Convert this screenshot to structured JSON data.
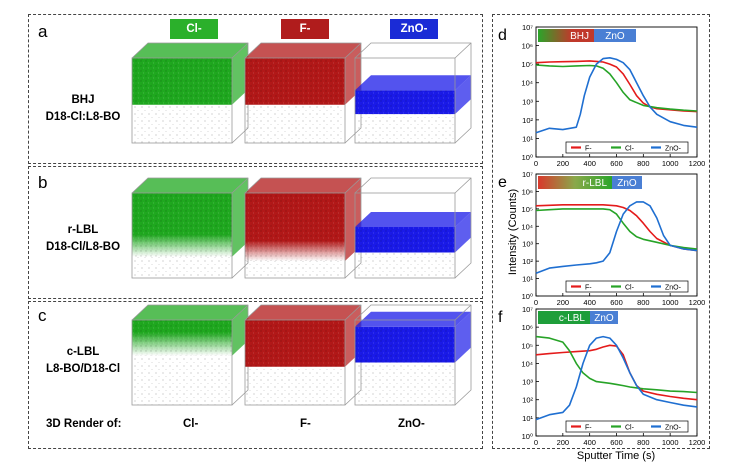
{
  "left": {
    "panel_labels": [
      "a",
      "b",
      "c"
    ],
    "column_headers": [
      {
        "label": "Cl-",
        "color": "#2bb02b"
      },
      {
        "label": "F-",
        "color": "#b01c1c"
      },
      {
        "label": "ZnO-",
        "color": "#1a2bd6"
      }
    ],
    "rows": [
      {
        "line1": "BHJ",
        "line2": "D18-Cl:L8-BO"
      },
      {
        "line1": "r-LBL",
        "line2": "D18-Cl/L8-BO"
      },
      {
        "line1": "c-LBL",
        "line2": "L8-BO/D18-Cl"
      }
    ],
    "footer": {
      "title": "3D Render of:",
      "labels": [
        "Cl-",
        "F-",
        "ZnO-"
      ]
    }
  },
  "right": {
    "shared_ylabel": "Intensity (Counts)",
    "shared_xlabel": "Sputter Time (s)"
  },
  "chart_data": [
    {
      "type": "line",
      "panel": "d",
      "banner": {
        "label1": "BHJ",
        "label2": "ZnO"
      },
      "xlim": [
        0,
        1200
      ],
      "xticks": [
        0,
        200,
        400,
        600,
        800,
        1000,
        1200
      ],
      "yscale": "log",
      "ylim": [
        1,
        10000000
      ],
      "ytick_labels": [
        "10^0",
        "10^1",
        "10^2",
        "10^3",
        "10^4",
        "10^5",
        "10^6",
        "10^7"
      ],
      "legend": [
        "F-",
        "Cl-",
        "ZnO-"
      ],
      "series": [
        {
          "name": "F-",
          "color": "#e41b1b",
          "x": [
            0,
            100,
            200,
            300,
            400,
            450,
            500,
            550,
            600,
            650,
            700,
            750,
            800,
            850,
            900,
            1000,
            1100,
            1200
          ],
          "y": [
            120000,
            130000,
            135000,
            140000,
            150000,
            140000,
            130000,
            100000,
            70000,
            30000,
            8000,
            2000,
            800,
            500,
            400,
            350,
            300,
            280
          ]
        },
        {
          "name": "Cl-",
          "color": "#27a327",
          "x": [
            0,
            100,
            200,
            300,
            400,
            450,
            500,
            550,
            600,
            650,
            700,
            800,
            900,
            1000,
            1100,
            1200
          ],
          "y": [
            90000,
            80000,
            75000,
            80000,
            85000,
            80000,
            60000,
            30000,
            10000,
            3000,
            1200,
            600,
            450,
            380,
            330,
            300
          ]
        },
        {
          "name": "ZnO-",
          "color": "#1f6fd1",
          "x": [
            0,
            100,
            200,
            300,
            330,
            360,
            400,
            450,
            500,
            550,
            600,
            650,
            700,
            750,
            800,
            850,
            900,
            1000,
            1100,
            1200
          ],
          "y": [
            20,
            35,
            30,
            40,
            200,
            2000,
            20000,
            100000,
            200000,
            220000,
            180000,
            120000,
            50000,
            10000,
            2000,
            500,
            200,
            80,
            50,
            40
          ]
        }
      ]
    },
    {
      "type": "line",
      "panel": "e",
      "banner": {
        "label1": "r-LBL",
        "label2": "ZnO"
      },
      "xlim": [
        0,
        1200
      ],
      "xticks": [
        0,
        200,
        400,
        600,
        800,
        1000,
        1200
      ],
      "yscale": "log",
      "ylim": [
        1,
        10000000
      ],
      "ytick_labels": [
        "10^0",
        "10^1",
        "10^2",
        "10^3",
        "10^4",
        "10^5",
        "10^6",
        "10^7"
      ],
      "legend": [
        "F-",
        "Cl-",
        "ZnO-"
      ],
      "series": [
        {
          "name": "F-",
          "color": "#e41b1b",
          "x": [
            0,
            100,
            200,
            300,
            400,
            500,
            550,
            600,
            650,
            700,
            750,
            800,
            850,
            900,
            1000,
            1100,
            1200
          ],
          "y": [
            150000,
            160000,
            170000,
            170000,
            170000,
            170000,
            160000,
            150000,
            120000,
            80000,
            40000,
            15000,
            5000,
            2000,
            800,
            500,
            400
          ]
        },
        {
          "name": "Cl-",
          "color": "#27a327",
          "x": [
            0,
            100,
            200,
            300,
            400,
            500,
            550,
            600,
            650,
            700,
            750,
            800,
            900,
            1000,
            1100,
            1200
          ],
          "y": [
            80000,
            90000,
            100000,
            100000,
            100000,
            100000,
            90000,
            50000,
            15000,
            5000,
            2500,
            1800,
            1200,
            800,
            600,
            500
          ]
        },
        {
          "name": "ZnO-",
          "color": "#1f6fd1",
          "x": [
            0,
            100,
            200,
            300,
            400,
            450,
            500,
            550,
            600,
            650,
            700,
            750,
            800,
            850,
            900,
            950,
            1000,
            1100,
            1200
          ],
          "y": [
            20,
            40,
            50,
            60,
            70,
            80,
            100,
            300,
            5000,
            50000,
            150000,
            250000,
            250000,
            150000,
            30000,
            3000,
            800,
            500,
            400
          ]
        }
      ]
    },
    {
      "type": "line",
      "panel": "f",
      "banner": {
        "label1": "c-LBL",
        "label2": "ZnO"
      },
      "xlim": [
        0,
        1200
      ],
      "xticks": [
        0,
        200,
        400,
        600,
        800,
        1000,
        1200
      ],
      "yscale": "log",
      "ylim": [
        1,
        10000000
      ],
      "ytick_labels": [
        "10^0",
        "10^1",
        "10^2",
        "10^3",
        "10^4",
        "10^5",
        "10^6",
        "10^7"
      ],
      "legend": [
        "F-",
        "Cl-",
        "ZnO-"
      ],
      "series": [
        {
          "name": "F-",
          "color": "#e41b1b",
          "x": [
            0,
            100,
            200,
            300,
            400,
            450,
            500,
            550,
            600,
            650,
            700,
            750,
            800,
            900,
            1000,
            1100,
            1200
          ],
          "y": [
            30000,
            35000,
            40000,
            45000,
            50000,
            60000,
            80000,
            100000,
            90000,
            30000,
            3000,
            600,
            300,
            200,
            150,
            120,
            100
          ]
        },
        {
          "name": "Cl-",
          "color": "#27a327",
          "x": [
            0,
            100,
            200,
            250,
            300,
            350,
            400,
            450,
            500,
            550,
            600,
            650,
            700,
            800,
            900,
            1000,
            1100,
            1200
          ],
          "y": [
            300000,
            250000,
            150000,
            50000,
            10000,
            3000,
            1500,
            1000,
            900,
            800,
            700,
            600,
            500,
            400,
            350,
            300,
            280,
            250
          ]
        },
        {
          "name": "ZnO-",
          "color": "#1f6fd1",
          "x": [
            0,
            100,
            200,
            250,
            300,
            350,
            400,
            450,
            500,
            550,
            600,
            650,
            700,
            750,
            800,
            900,
            1000,
            1100,
            1200
          ],
          "y": [
            8,
            15,
            20,
            50,
            500,
            10000,
            100000,
            250000,
            300000,
            250000,
            100000,
            20000,
            3000,
            600,
            200,
            100,
            70,
            50,
            40
          ]
        }
      ]
    }
  ]
}
